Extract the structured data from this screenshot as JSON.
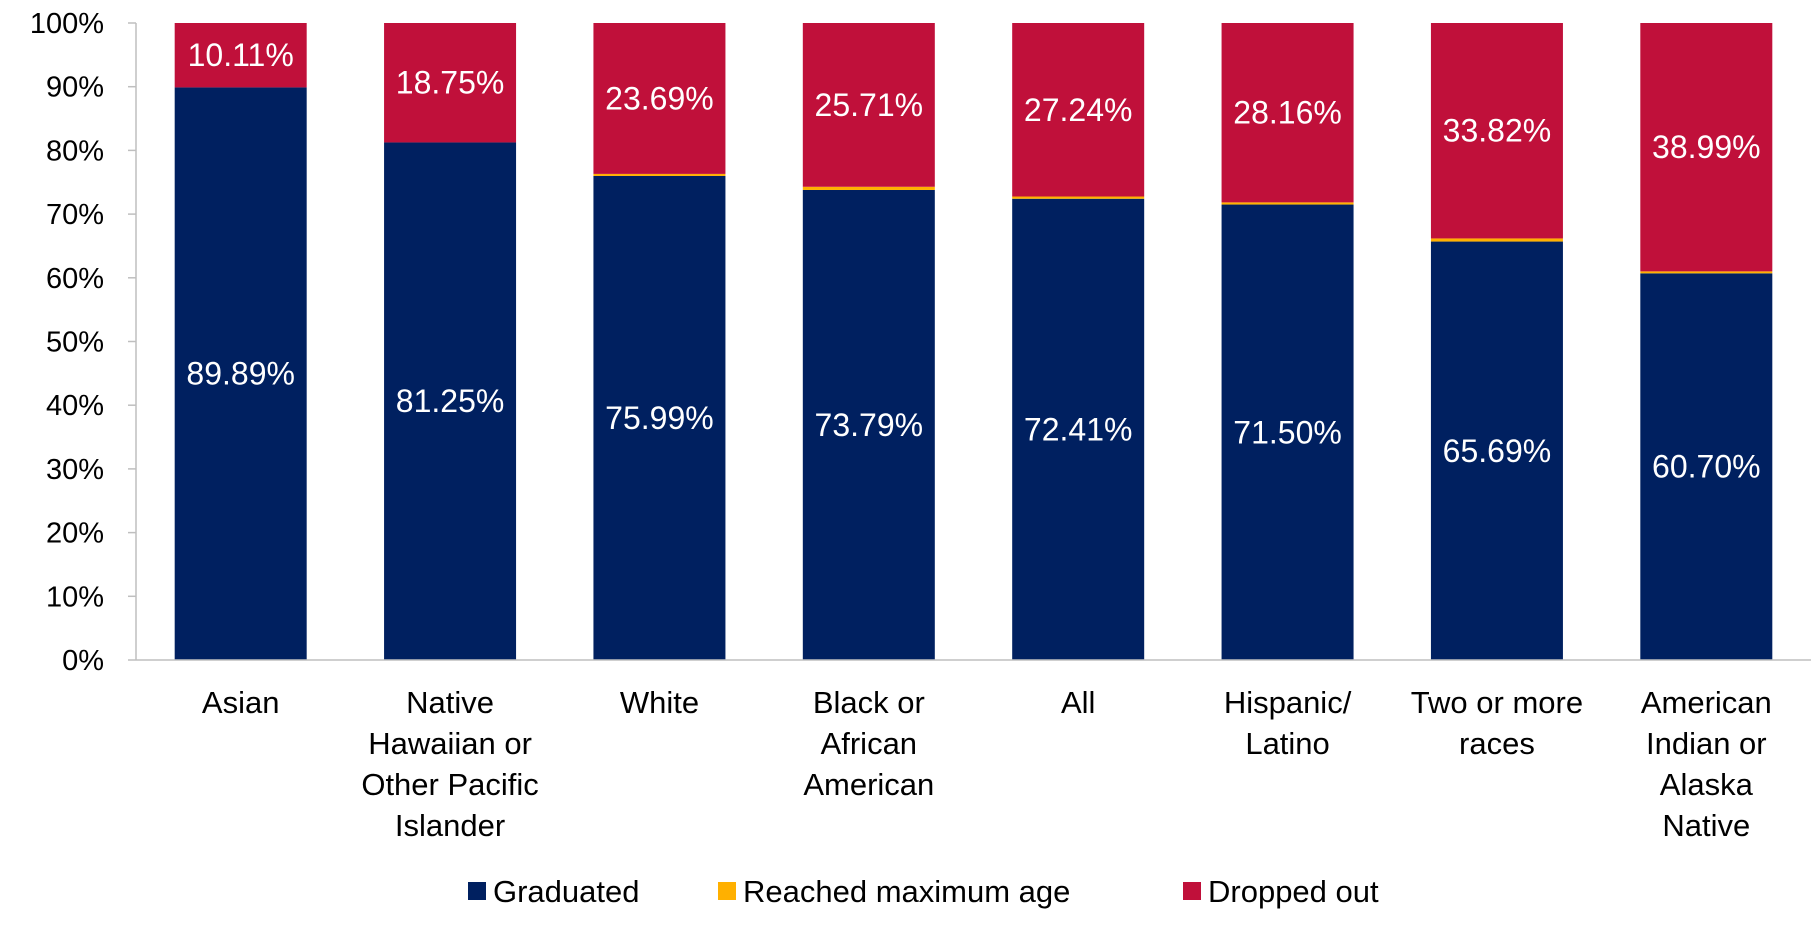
{
  "chart_data": {
    "type": "bar",
    "stacked": true,
    "categories": [
      "Asian",
      "Native Hawaiian or Other Pacific Islander",
      "White",
      "Black or African American",
      "All",
      "Hispanic/ Latino",
      "Two or more races",
      "American Indian or Alaska Native"
    ],
    "category_lines": [
      [
        "Asian"
      ],
      [
        "Native",
        "Hawaiian or",
        "Other Pacific",
        "Islander"
      ],
      [
        "White"
      ],
      [
        "Black or",
        "African",
        "American"
      ],
      [
        "All"
      ],
      [
        "Hispanic/",
        "Latino"
      ],
      [
        "Two or more",
        "races"
      ],
      [
        "American",
        "Indian or",
        "Alaska",
        "Native"
      ]
    ],
    "series": [
      {
        "name": "Graduated",
        "color": "#002060",
        "values": [
          89.89,
          81.25,
          75.99,
          73.79,
          72.41,
          71.5,
          65.69,
          60.7
        ],
        "labels": [
          "89.89%",
          "81.25%",
          "75.99%",
          "73.79%",
          "72.41%",
          "71.50%",
          "65.69%",
          "60.70%"
        ]
      },
      {
        "name": "Reached maximum age",
        "color": "#FFB000",
        "values": [
          0.0,
          0.0,
          0.32,
          0.5,
          0.35,
          0.34,
          0.49,
          0.31
        ],
        "labels": []
      },
      {
        "name": "Dropped out",
        "color": "#C0103A",
        "values": [
          10.11,
          18.75,
          23.69,
          25.71,
          27.24,
          28.16,
          33.82,
          38.99
        ],
        "labels": [
          "10.11%",
          "18.75%",
          "23.69%",
          "25.71%",
          "27.24%",
          "28.16%",
          "33.82%",
          "38.99%"
        ]
      }
    ],
    "y_ticks": [
      "0%",
      "10%",
      "20%",
      "30%",
      "40%",
      "50%",
      "60%",
      "70%",
      "80%",
      "90%",
      "100%"
    ],
    "ylim": [
      0,
      100
    ],
    "legend_position": "bottom",
    "grid": false,
    "title": "",
    "xlabel": "",
    "ylabel": ""
  }
}
